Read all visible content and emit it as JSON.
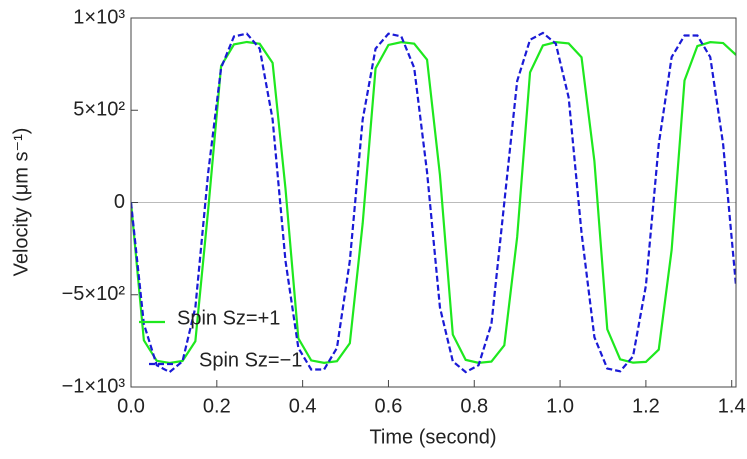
{
  "chart_data": {
    "type": "line",
    "xlabel": "Time (second)",
    "ylabel": "Velocity (μm s⁻¹)",
    "x": [
      0,
      0.03,
      0.06,
      0.09,
      0.12,
      0.15,
      0.18,
      0.21,
      0.24,
      0.27,
      0.3,
      0.33,
      0.36,
      0.39,
      0.42,
      0.45,
      0.48,
      0.51,
      0.54,
      0.57,
      0.6,
      0.63,
      0.66,
      0.69,
      0.72,
      0.75,
      0.78,
      0.81,
      0.84,
      0.87,
      0.9,
      0.93,
      0.96,
      0.99,
      1.02,
      1.05,
      1.08,
      1.11,
      1.14,
      1.17,
      1.2,
      1.23,
      1.26,
      1.29,
      1.32,
      1.35,
      1.38,
      1.41
    ],
    "series": [
      {
        "name": "Spin Sz=+1",
        "color": "#1ee81e",
        "dash": "solid",
        "values": [
          0,
          -747,
          -858,
          -870,
          -859,
          -752,
          -37,
          740,
          857,
          870,
          860,
          757,
          76,
          -736,
          -856,
          -869,
          -860,
          -763,
          -112,
          727,
          854,
          869,
          861,
          774,
          149,
          -716,
          -853,
          -869,
          -862,
          -774,
          -187,
          705,
          851,
          869,
          862,
          787,
          224,
          -687,
          -850,
          -868,
          -864,
          -797,
          -257,
          661,
          848,
          869,
          864,
          800
        ]
      },
      {
        "name": "Spin Sz=−1",
        "color": "#1a1ad6",
        "dash": "dashed",
        "values": [
          0,
          -658,
          -882,
          -919,
          -861,
          -569,
          164,
          730,
          900,
          915,
          834,
          451,
          -316,
          -788,
          -905,
          -905,
          -788,
          -316,
          451,
          834,
          915,
          900,
          730,
          164,
          -569,
          -861,
          -919,
          -882,
          -658,
          0,
          658,
          882,
          919,
          861,
          569,
          -164,
          -730,
          -900,
          -915,
          -834,
          -451,
          316,
          788,
          905,
          905,
          788,
          316,
          -451
        ]
      }
    ],
    "xlim": [
      0,
      1.41
    ],
    "ylim": [
      -1000,
      1000
    ],
    "xticks": [
      {
        "value": 0,
        "label": "0.0"
      },
      0.2,
      0.4,
      0.6,
      0.8,
      {
        "value": 1,
        "label": "1.0"
      },
      1.2,
      1.4
    ],
    "yticks": [
      {
        "value": -1000,
        "label": "−1×10³"
      },
      {
        "value": -500,
        "label": "−5×10²"
      },
      0,
      {
        "value": 500,
        "label": "5×10²"
      },
      {
        "value": 1000,
        "label": "1×10³"
      }
    ],
    "zero_line": true,
    "legend": "lower left"
  }
}
